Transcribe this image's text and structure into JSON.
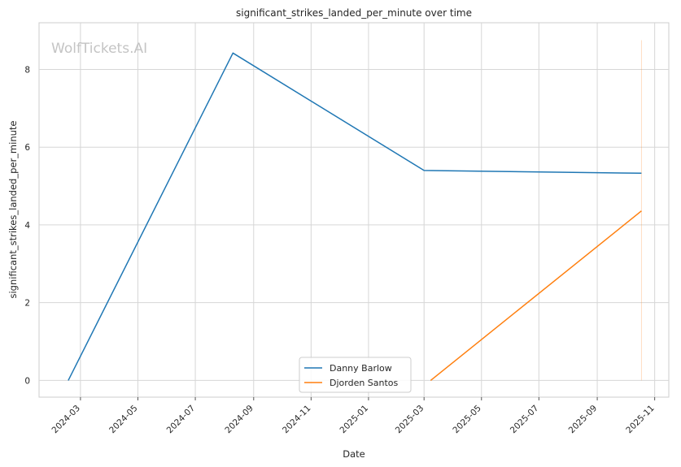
{
  "chart_data": {
    "type": "line",
    "title": "significant_strikes_landed_per_minute over time",
    "xlabel": "Date",
    "ylabel": "significant_strikes_landed_per_minute",
    "watermark": "WolfTickets.AI",
    "x_ticks": [
      "2024-03",
      "2024-05",
      "2024-07",
      "2024-09",
      "2024-11",
      "2025-01",
      "2025-03",
      "2025-05",
      "2025-07",
      "2025-09",
      "2025-11"
    ],
    "y_ticks": [
      0,
      2,
      4,
      6,
      8
    ],
    "xlim": [
      "2024-01-17",
      "2025-11-16"
    ],
    "ylim": [
      -0.43,
      9.2
    ],
    "grid": true,
    "legend_position": "bottom-center",
    "series": [
      {
        "name": "Danny Barlow",
        "color": "#1f77b4",
        "points": [
          {
            "x": "2024-02-17",
            "y": 0.0
          },
          {
            "x": "2024-08-10",
            "y": 8.42
          },
          {
            "x": "2025-03-01",
            "y": 5.4
          },
          {
            "x": "2025-10-18",
            "y": 5.33
          }
        ]
      },
      {
        "name": "Djorden Santos",
        "color": "#ff7f0e",
        "points": [
          {
            "x": "2025-03-08",
            "y": 0.0
          },
          {
            "x": "2025-10-18",
            "y": 4.36
          }
        ]
      }
    ],
    "vertical_marker": {
      "x": "2025-10-18",
      "y_range": [
        0.0,
        8.75
      ],
      "color": "#ff7f0e"
    }
  }
}
